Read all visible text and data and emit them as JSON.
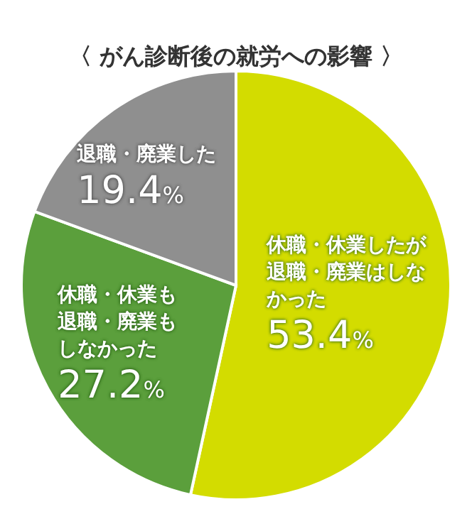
{
  "chart_data": {
    "type": "pie",
    "title": "〈 がん診断後の就労への影響 〉",
    "categories": [
      "休職・休業したが退職・廃業はしなかった",
      "休職・休業も退職・廃業もしなかった",
      "退職・廃業した"
    ],
    "values": [
      53.4,
      27.2,
      19.4
    ],
    "colors": [
      "#d3dc00",
      "#5b9f3c",
      "#8f8f8f"
    ],
    "value_labels": [
      "53.4%",
      "27.2%",
      "19.4%"
    ]
  }
}
